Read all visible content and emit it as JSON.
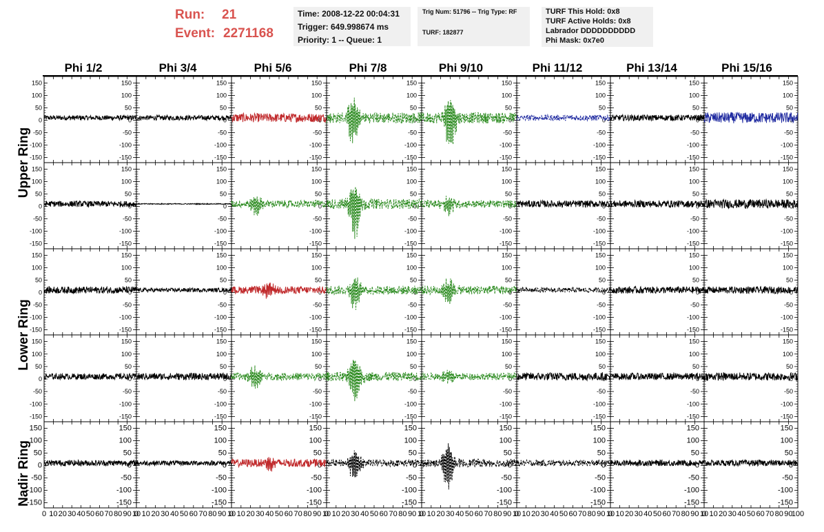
{
  "header": {
    "run_label": "Run:",
    "run_value": "21",
    "event_label": "Event:",
    "event_value": "2271168",
    "run_color": "#d9534f"
  },
  "info_time": {
    "time": "Time: 2008-12-22 00:04:31",
    "trigger": "Trigger: 649.998674 ms",
    "priority": "Priority: 1 -- Queue: 1"
  },
  "info_trig": {
    "trig": "Trig Num: 51796 -- Trig Type: RF",
    "turf": "TURF: 182877"
  },
  "info_turf": {
    "hold": "TURF This Hold: 0x8",
    "active": "TURF Active Holds: 0x8",
    "labrador": "Labrador DDDDDDDDDD",
    "mask": "Phi Mask: 0x7e0"
  },
  "chart_data": {
    "type": "line",
    "columns": [
      "Phi 1/2",
      "Phi 3/4",
      "Phi 5/6",
      "Phi 7/8",
      "Phi 9/10",
      "Phi 11/12",
      "Phi 13/14",
      "Phi 15/16"
    ],
    "ring_labels": [
      "Upper Ring",
      "Lower Ring",
      "Nadir Ring"
    ],
    "row_ring": [
      0,
      0,
      1,
      1,
      2
    ],
    "ylim": [
      -160,
      160
    ],
    "xlim": [
      0,
      100
    ],
    "yticks_small": [
      "150",
      "100",
      "50",
      "0",
      "-50",
      "-100",
      "-150"
    ],
    "yticks_small_values": [
      150,
      100,
      50,
      0,
      -50,
      -100,
      -150
    ],
    "yticks_big": [
      "150",
      "100",
      "50",
      "0",
      "-50",
      "-100",
      "-150"
    ],
    "xtick_values": [
      0,
      10,
      20,
      30,
      40,
      50,
      60,
      70,
      80,
      90,
      100
    ],
    "xtick_labels": {
      "first": [
        "0",
        "10",
        "20",
        "30",
        "40",
        "50",
        "60",
        "70",
        "80",
        "90",
        "10"
      ],
      "middle": [
        "0",
        "10",
        "20",
        "30",
        "40",
        "50",
        "60",
        "70",
        "80",
        "90",
        "10"
      ],
      "last": [
        "0",
        "10",
        "20",
        "30",
        "40",
        "50",
        "60",
        "70",
        "80",
        "90",
        "100"
      ]
    },
    "colors": {
      "black": "#000000",
      "red": "#c0292b",
      "green": "#2a8a1e",
      "blue": "#1f2aa0"
    },
    "panels": [
      [
        {
          "color": "black",
          "style": "solid",
          "amp": 10,
          "burst": 0
        },
        {
          "color": "black",
          "style": "solid",
          "amp": 10,
          "burst": 0
        },
        {
          "color": "red",
          "style": "solid",
          "amp": 18,
          "burst": 0
        },
        {
          "color": "green",
          "style": "dashed",
          "amp": 22,
          "burst": 110,
          "burst_center": 28
        },
        {
          "color": "green",
          "style": "dashed",
          "amp": 22,
          "burst": 130,
          "burst_center": 30
        },
        {
          "color": "blue",
          "style": "dashed",
          "amp": 12,
          "burst": 0
        },
        {
          "color": "black",
          "style": "solid",
          "amp": 12,
          "burst": 0
        },
        {
          "color": "blue",
          "style": "solid",
          "amp": 22,
          "burst": 0
        }
      ],
      [
        {
          "color": "black",
          "style": "solid",
          "amp": 12,
          "burst": 0
        },
        {
          "color": "black",
          "style": "solid",
          "amp": 2,
          "burst": 0
        },
        {
          "color": "green",
          "style": "dashed",
          "amp": 15,
          "burst": 50,
          "burst_center": 25
        },
        {
          "color": "green",
          "style": "dashed",
          "amp": 20,
          "burst": 140,
          "burst_center": 30
        },
        {
          "color": "green",
          "style": "dashed",
          "amp": 15,
          "burst": 45,
          "burst_center": 28
        },
        {
          "color": "black",
          "style": "solid",
          "amp": 14,
          "burst": 0
        },
        {
          "color": "black",
          "style": "solid",
          "amp": 14,
          "burst": 0
        },
        {
          "color": "black",
          "style": "solid",
          "amp": 18,
          "burst": 0
        }
      ],
      [
        {
          "color": "black",
          "style": "solid",
          "amp": 14,
          "burst": 0
        },
        {
          "color": "black",
          "style": "solid",
          "amp": 8,
          "burst": 0
        },
        {
          "color": "red",
          "style": "solid",
          "amp": 15,
          "burst": 35,
          "burst_center": 40
        },
        {
          "color": "green",
          "style": "dashed",
          "amp": 18,
          "burst": 80,
          "burst_center": 30
        },
        {
          "color": "green",
          "style": "dashed",
          "amp": 18,
          "burst": 70,
          "burst_center": 28
        },
        {
          "color": "black",
          "style": "dashed",
          "amp": 10,
          "burst": 0
        },
        {
          "color": "black",
          "style": "solid",
          "amp": 14,
          "burst": 0
        },
        {
          "color": "black",
          "style": "solid",
          "amp": 14,
          "burst": 0
        }
      ],
      [
        {
          "color": "black",
          "style": "solid",
          "amp": 12,
          "burst": 0
        },
        {
          "color": "black",
          "style": "solid",
          "amp": 14,
          "burst": 0
        },
        {
          "color": "green",
          "style": "dashed",
          "amp": 15,
          "burst": 55,
          "burst_center": 25
        },
        {
          "color": "green",
          "style": "dashed",
          "amp": 18,
          "burst": 120,
          "burst_center": 30
        },
        {
          "color": "green",
          "style": "dashed",
          "amp": 14,
          "burst": 30,
          "burst_center": 28
        },
        {
          "color": "black",
          "style": "solid",
          "amp": 16,
          "burst": 0
        },
        {
          "color": "black",
          "style": "solid",
          "amp": 14,
          "burst": 0
        },
        {
          "color": "black",
          "style": "solid",
          "amp": 16,
          "burst": 0
        }
      ],
      [
        {
          "color": "black",
          "style": "solid",
          "amp": 12,
          "burst": 0
        },
        {
          "color": "black",
          "style": "solid",
          "amp": 10,
          "burst": 0
        },
        {
          "color": "red",
          "style": "solid",
          "amp": 16,
          "burst": 30,
          "burst_center": 40
        },
        {
          "color": "black",
          "style": "dashed",
          "amp": 14,
          "burst": 80,
          "burst_center": 30
        },
        {
          "color": "black",
          "style": "dashed",
          "amp": 16,
          "burst": 110,
          "burst_center": 28
        },
        {
          "color": "black",
          "style": "dashed",
          "amp": 12,
          "burst": 0
        },
        {
          "color": "black",
          "style": "solid",
          "amp": 12,
          "burst": 0
        },
        {
          "color": "black",
          "style": "solid",
          "amp": 12,
          "burst": 0
        }
      ]
    ]
  }
}
